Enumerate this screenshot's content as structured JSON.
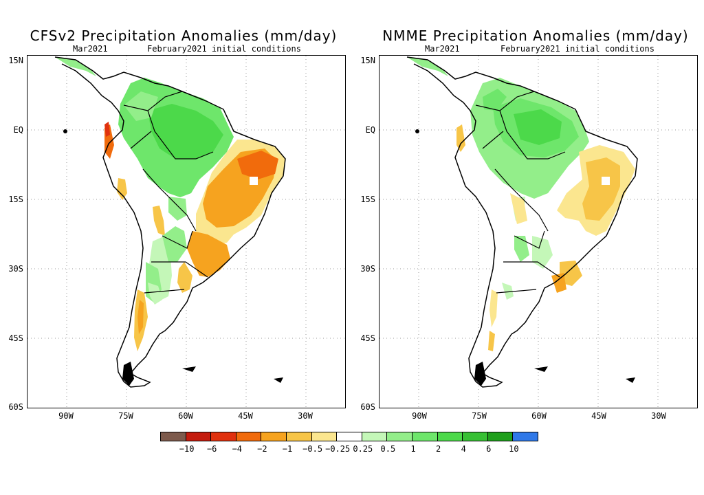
{
  "panels": [
    {
      "title": "CFSv2 Precipitation Anomalies (mm/day)",
      "month": "Mar2021",
      "conditions": "February2021 initial conditions",
      "y_ticks": [
        "15N",
        "EQ",
        "15S",
        "30S",
        "45S",
        "60S"
      ],
      "x_ticks": [
        "90W",
        "75W",
        "60W",
        "45W",
        "30W"
      ]
    },
    {
      "title": "NMME Precipitation Anomalies (mm/day)",
      "month": "Mar2021",
      "conditions": "February2021 initial conditions",
      "y_ticks": [
        "15N",
        "EQ",
        "15S",
        "30S",
        "45S",
        "60S"
      ],
      "x_ticks": [
        "90W",
        "75W",
        "60W",
        "45W",
        "30W"
      ]
    }
  ],
  "colorbar": {
    "colors": [
      "#7d5a4c",
      "#c41c0e",
      "#e0310e",
      "#f16b0c",
      "#f6a31f",
      "#f7c548",
      "#fbe68f",
      "#ffffff",
      "#c4f7b8",
      "#93ee8a",
      "#6ee66b",
      "#4cd94a",
      "#37c034",
      "#1f9f1c",
      "#2f78e8"
    ],
    "labels": [
      "−10",
      "−6",
      "−4",
      "−2",
      "−1",
      "−0.5",
      "−0.25",
      "0.25",
      "0.5",
      "1",
      "2",
      "4",
      "6",
      "10"
    ]
  },
  "regions": {
    "green_light": "#c4f7b8",
    "green": "#93ee8a",
    "green_med": "#6ee66b",
    "green_dark": "#4cd94a",
    "yellow": "#fbe68f",
    "orange_light": "#f7c548",
    "orange": "#f6a31f",
    "orange_dark": "#f16b0c",
    "red": "#e0310e"
  }
}
